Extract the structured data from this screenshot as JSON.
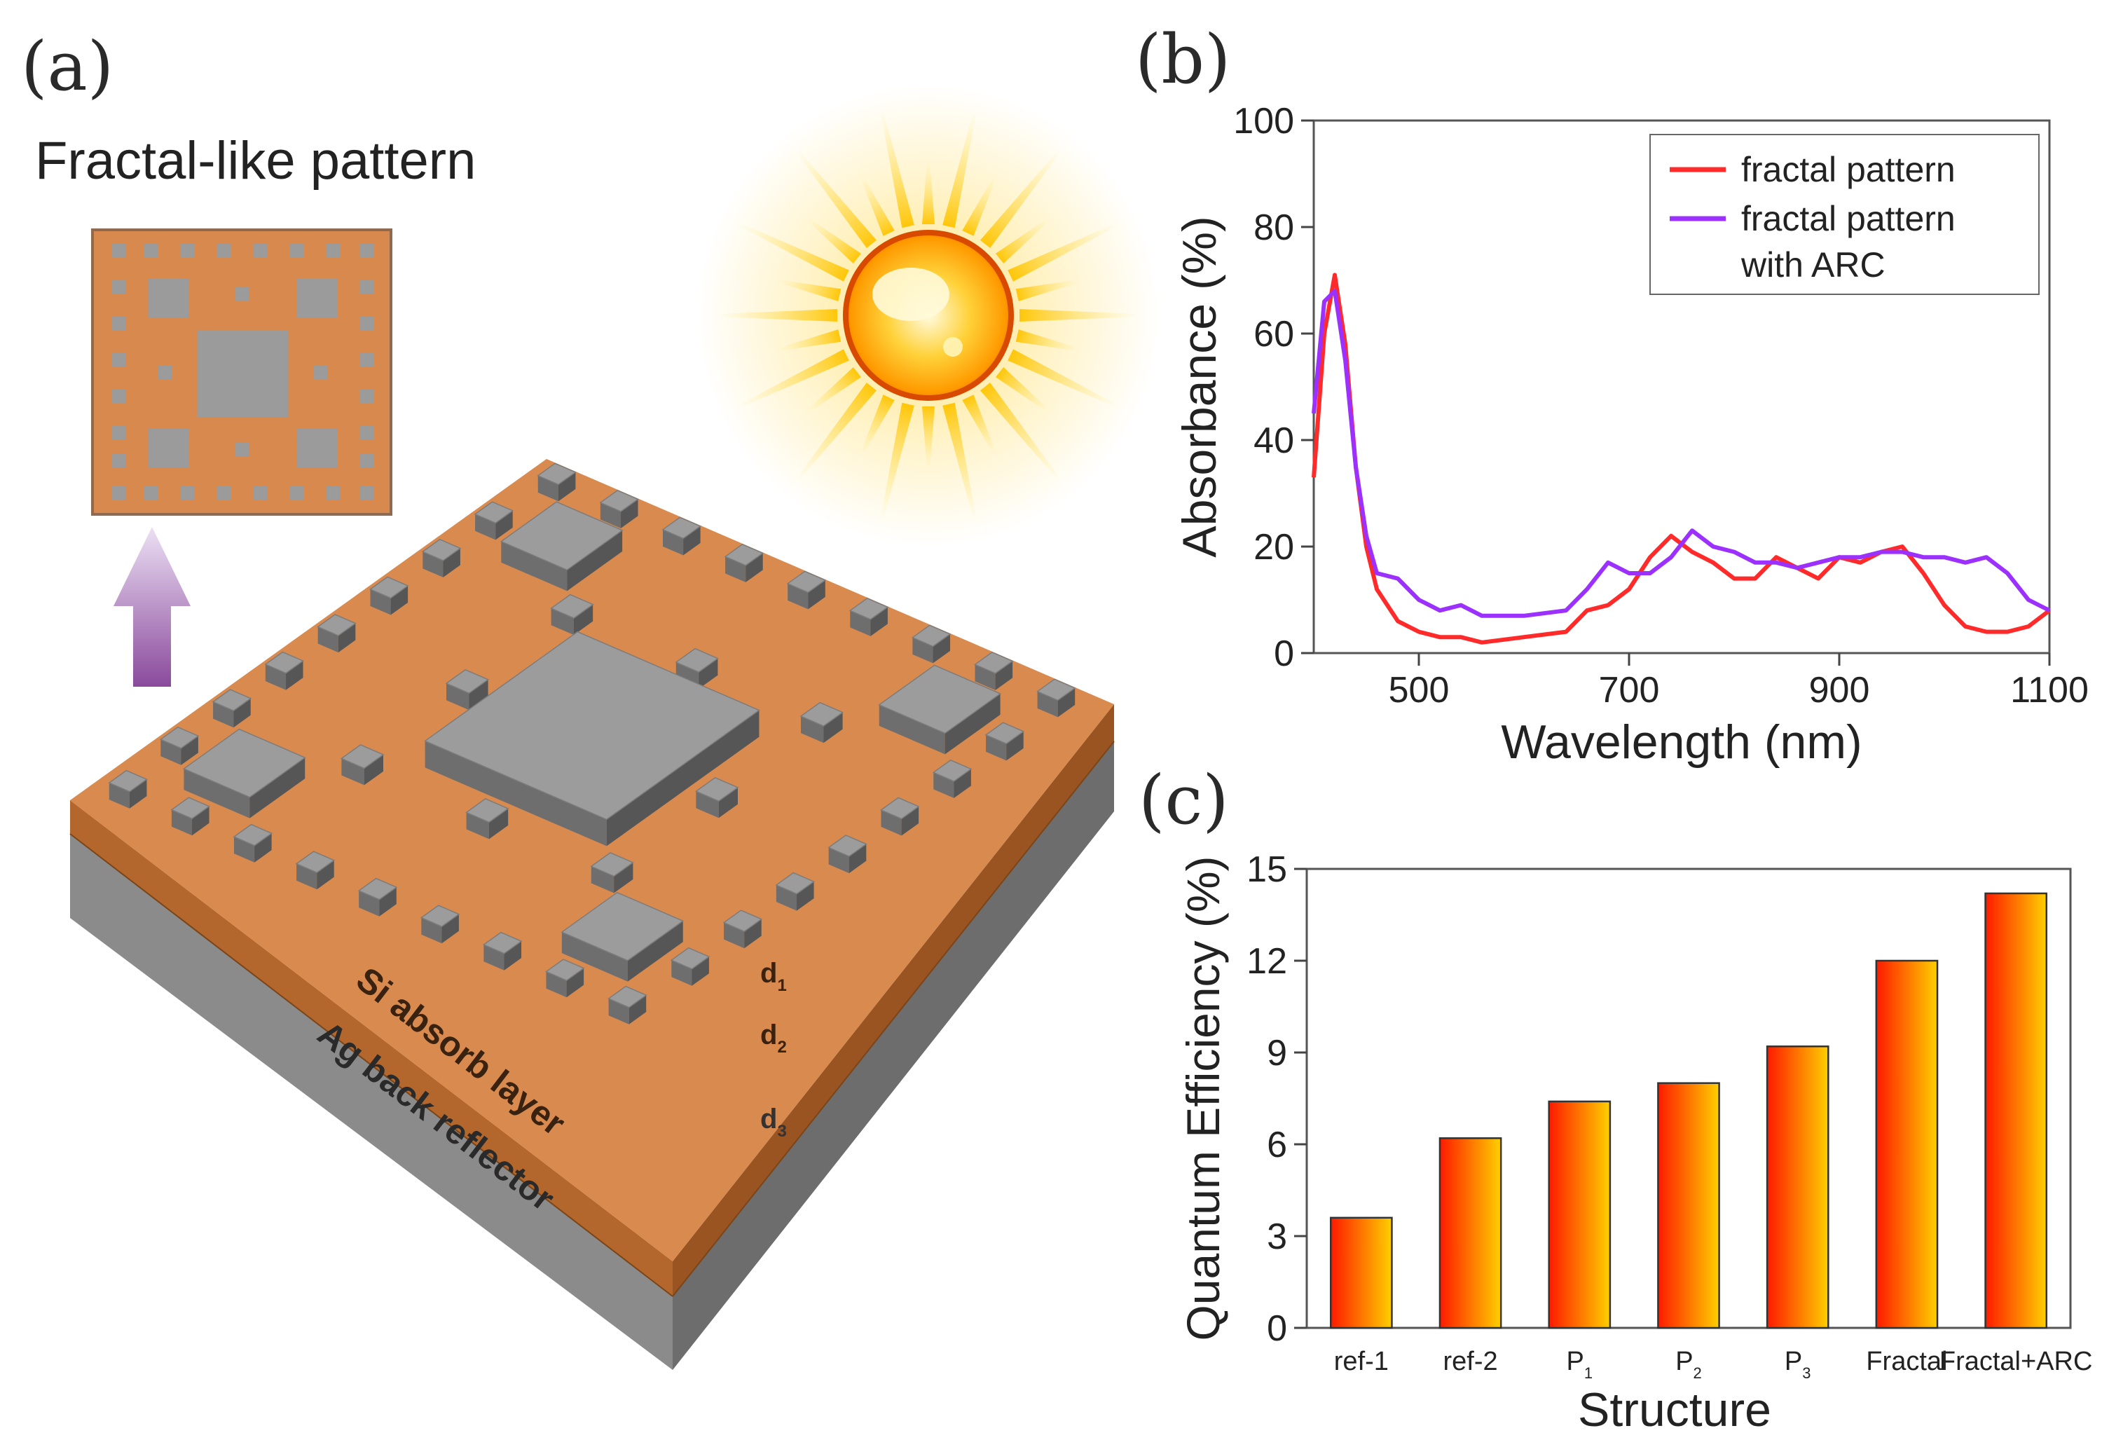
{
  "panels": {
    "a": {
      "label": "(a)",
      "title": "Fractal-like pattern",
      "layers": {
        "si": "Si absorb layer",
        "ag": "Ag back reflector"
      },
      "dims": {
        "d1": {
          "base": "d",
          "sub": "1"
        },
        "d2": {
          "base": "d",
          "sub": "2"
        },
        "d3": {
          "base": "d",
          "sub": "3"
        }
      },
      "colors": {
        "si": "#d98a4e",
        "ag": "#8c8c8c",
        "block": "#9a9a9a",
        "sun": "#ffb300"
      }
    },
    "b": {
      "label": "(b)"
    },
    "c": {
      "label": "(c)"
    }
  },
  "chart_data": [
    {
      "id": "b",
      "type": "line",
      "xlabel": "Wavelength (nm)",
      "ylabel": "Absorbance (%)",
      "xlim": [
        400,
        1100
      ],
      "ylim": [
        0,
        100
      ],
      "xticks": [
        500,
        700,
        900,
        1100
      ],
      "yticks": [
        0,
        20,
        40,
        60,
        80,
        100
      ],
      "legend_position": "top-right",
      "series": [
        {
          "name": "fractal pattern",
          "color": "#ff2a2a",
          "x": [
            400,
            410,
            420,
            430,
            440,
            450,
            460,
            480,
            500,
            520,
            540,
            560,
            600,
            640,
            660,
            680,
            700,
            720,
            740,
            760,
            780,
            800,
            820,
            840,
            860,
            880,
            900,
            920,
            940,
            960,
            980,
            1000,
            1020,
            1040,
            1060,
            1080,
            1100
          ],
          "y": [
            33,
            60,
            71,
            58,
            35,
            20,
            12,
            6,
            4,
            3,
            3,
            2,
            3,
            4,
            8,
            9,
            12,
            18,
            22,
            19,
            17,
            14,
            14,
            18,
            16,
            14,
            18,
            17,
            19,
            20,
            15,
            9,
            5,
            4,
            4,
            5,
            8
          ]
        },
        {
          "name": "fractal pattern with ARC",
          "legend_lines": [
            "fractal pattern",
            "with ARC"
          ],
          "color": "#9b30ff",
          "x": [
            400,
            410,
            420,
            430,
            440,
            450,
            460,
            480,
            500,
            520,
            540,
            560,
            600,
            640,
            660,
            680,
            700,
            720,
            740,
            760,
            780,
            800,
            820,
            840,
            860,
            880,
            900,
            920,
            940,
            960,
            980,
            1000,
            1020,
            1040,
            1060,
            1080,
            1100
          ],
          "y": [
            45,
            66,
            68,
            55,
            35,
            22,
            15,
            14,
            10,
            8,
            9,
            7,
            7,
            8,
            12,
            17,
            15,
            15,
            18,
            23,
            20,
            19,
            17,
            17,
            16,
            17,
            18,
            18,
            19,
            19,
            18,
            18,
            17,
            18,
            15,
            10,
            8
          ]
        }
      ]
    },
    {
      "id": "c",
      "type": "bar",
      "xlabel": "Structure",
      "ylabel": "Quantum Efficiency (%)",
      "ylim": [
        0,
        15
      ],
      "yticks": [
        0,
        3,
        6,
        9,
        12,
        15
      ],
      "categories": [
        {
          "base": "ref-1",
          "sub": ""
        },
        {
          "base": "ref-2",
          "sub": ""
        },
        {
          "base": "P",
          "sub": "1"
        },
        {
          "base": "P",
          "sub": "2"
        },
        {
          "base": "P",
          "sub": "3"
        },
        {
          "base": "Fractal",
          "sub": ""
        },
        {
          "base": "Fractal+ARC",
          "sub": ""
        }
      ],
      "values": [
        3.6,
        6.2,
        7.4,
        8.0,
        9.2,
        12.0,
        14.2
      ],
      "gradient": [
        "#ff1a00",
        "#ffd000"
      ]
    }
  ]
}
